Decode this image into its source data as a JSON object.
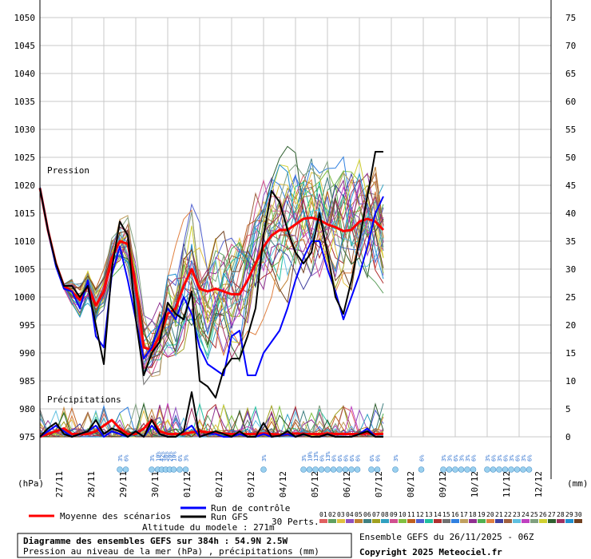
{
  "chart_data": {
    "type": "line",
    "title": "Diagramme des ensembles GEFS sur 384h : 54.9N 2.5W",
    "subtitle": "Pression au niveau de la mer (hPa) , précipitations (mm)",
    "run_info": "Ensemble GEFS du 26/11/2025 - 06Z",
    "copyright": "Copyright 2025 Meteociel.fr",
    "altitude": "Altitude du modele : 271m",
    "left_unit": "(hPa)",
    "right_unit": "(mm)",
    "pressure_label": "Pression",
    "precip_label": "Précipitations",
    "y_left_ticks": [
      "975",
      "980",
      "985",
      "990",
      "995",
      "1000",
      "1005",
      "1010",
      "1015",
      "1020",
      "1025",
      "1030",
      "1035",
      "1040",
      "1045",
      "1050"
    ],
    "y_right_ticks": [
      "0",
      "5",
      "10",
      "15",
      "20",
      "25",
      "30",
      "35",
      "40",
      "45",
      "50",
      "55",
      "60",
      "65",
      "70",
      "75"
    ],
    "ylim": [
      975,
      1050
    ],
    "x_ticks": [
      "27/11",
      "28/11",
      "29/11",
      "30/11",
      "01/12",
      "02/12",
      "03/12",
      "04/12",
      "05/12",
      "06/12",
      "07/12",
      "08/12",
      "09/12",
      "10/12",
      "11/12",
      "12/12"
    ],
    "grid": true,
    "legend": {
      "mean": "Moyenne des scénarios",
      "control": "Run de contrôle",
      "gfs": "Run GFS",
      "perts_label": "30 Perts.",
      "pert_numbers": [
        "01",
        "02",
        "03",
        "04",
        "05",
        "06",
        "07",
        "08",
        "09",
        "10",
        "11",
        "12",
        "13",
        "14",
        "15",
        "16",
        "17",
        "18",
        "19",
        "20",
        "21",
        "22",
        "23",
        "24",
        "25",
        "26",
        "27",
        "28",
        "29",
        "30"
      ],
      "pert_colors": [
        "#e06060",
        "#60a060",
        "#e0c040",
        "#9050c0",
        "#c08030",
        "#408080",
        "#a0a020",
        "#30a0c0",
        "#d05090",
        "#80c040",
        "#c06020",
        "#5060d0",
        "#20c0a0",
        "#b03030",
        "#707070",
        "#3080e0",
        "#c0a060",
        "#903090",
        "#50b050",
        "#e08040",
        "#4040a0",
        "#a06040",
        "#60c0e0",
        "#c040c0",
        "#80a080",
        "#d0d030",
        "#306030",
        "#a03060",
        "#2090d0",
        "#704020"
      ]
    },
    "snow_markers": [
      {
        "x": 10.0,
        "label": "3%"
      },
      {
        "x": 10.75,
        "label": "6%"
      },
      {
        "x": 14.0,
        "label": "3%"
      },
      {
        "x": 14.75,
        "label": "10%"
      },
      {
        "x": 15.25,
        "label": "42%"
      },
      {
        "x": 15.75,
        "label": "38%"
      },
      {
        "x": 16.25,
        "label": "20%"
      },
      {
        "x": 16.75,
        "label": "10%"
      },
      {
        "x": 17.5,
        "label": "6%"
      },
      {
        "x": 18.25,
        "label": "3%"
      },
      {
        "x": 28.0,
        "label": "3%"
      },
      {
        "x": 33.0,
        "label": "3%"
      },
      {
        "x": 33.75,
        "label": "10%"
      },
      {
        "x": 34.5,
        "label": "13%"
      },
      {
        "x": 35.25,
        "label": "6%"
      },
      {
        "x": 36.0,
        "label": "13%"
      },
      {
        "x": 36.75,
        "label": "6%"
      },
      {
        "x": 37.5,
        "label": "6%"
      },
      {
        "x": 38.25,
        "label": "6%"
      },
      {
        "x": 39.0,
        "label": "6%"
      },
      {
        "x": 39.75,
        "label": "6%"
      },
      {
        "x": 41.5,
        "label": "6%"
      },
      {
        "x": 42.25,
        "label": "6%"
      },
      {
        "x": 44.5,
        "label": "3%"
      },
      {
        "x": 47.75,
        "label": "6%"
      },
      {
        "x": 50.5,
        "label": "3%"
      },
      {
        "x": 51.25,
        "label": "3%"
      },
      {
        "x": 52.0,
        "label": "6%"
      },
      {
        "x": 52.75,
        "label": "3%"
      },
      {
        "x": 53.5,
        "label": "3%"
      },
      {
        "x": 54.25,
        "label": "6%"
      },
      {
        "x": 56.0,
        "label": "3%"
      },
      {
        "x": 56.75,
        "label": "6%"
      },
      {
        "x": 57.5,
        "label": "3%"
      },
      {
        "x": 58.25,
        "label": "6%"
      },
      {
        "x": 59.0,
        "label": "3%"
      },
      {
        "x": 59.75,
        "label": "6%"
      },
      {
        "x": 60.5,
        "label": "3%"
      },
      {
        "x": 61.25,
        "label": "6%"
      }
    ],
    "series": [
      {
        "name": "Moyenne des scénarios",
        "kind": "pressure",
        "color": "#ff0000",
        "values": [
          1019.5,
          1012,
          1006,
          1002,
          1001,
          999.5,
          1002,
          998.5,
          1001,
          1007,
          1010,
          1009.5,
          1002,
          991,
          990.5,
          993,
          997,
          998,
          1002,
          1005,
          1001.5,
          1001,
          1001.5,
          1001,
          1000.5,
          1000.5,
          1003,
          1006,
          1009,
          1011,
          1012,
          1012,
          1013,
          1014,
          1014.2,
          1013.8,
          1013,
          1012.5,
          1011.8,
          1012,
          1013.5,
          1014,
          1013.5,
          1012
        ]
      },
      {
        "name": "Run de contrôle",
        "kind": "pressure",
        "color": "#0000ff",
        "values": [
          1019.5,
          1012,
          1005.5,
          1001.5,
          1001,
          998,
          1003,
          993,
          991,
          1004,
          1009,
          1003,
          996,
          989,
          991,
          995,
          998,
          996,
          1000,
          997,
          991,
          988,
          987,
          986,
          993,
          994,
          986,
          986,
          990,
          992,
          994,
          998,
          1003,
          1007,
          1010,
          1010,
          1005,
          1001,
          996,
          1000,
          1004,
          1009,
          1015,
          1018
        ]
      },
      {
        "name": "Run GFS",
        "kind": "pressure",
        "color": "#000000",
        "values": [
          1019.5,
          1012,
          1006,
          1002,
          1002,
          1000,
          1002,
          995,
          988,
          1005,
          1013.5,
          1011,
          996,
          986,
          990,
          992,
          999,
          997,
          996,
          1001,
          985,
          984,
          982,
          987,
          989,
          989,
          993,
          998,
          1011,
          1019,
          1017,
          1012,
          1008,
          1006,
          1008,
          1015,
          1008,
          1000,
          997,
          1003,
          1010,
          1018,
          1026,
          1026
        ]
      },
      {
        "name": "Moyenne des scénarios (précipitations)",
        "kind": "precip",
        "color": "#ff0000",
        "values": [
          0,
          0.5,
          1,
          1.5,
          0.5,
          0.5,
          0.5,
          1,
          2,
          3,
          1.5,
          0.5,
          0.5,
          1.5,
          3,
          1,
          0.5,
          0.5,
          0.5,
          0.8,
          1,
          0.8,
          0.8,
          0.6,
          0.5,
          0.5,
          0.5,
          0.5,
          0.6,
          0.5,
          0.4,
          0.5,
          0.6,
          0.5,
          0.5,
          0.5,
          0.6,
          0.5,
          0.5,
          0.5,
          0.5,
          0.6,
          0.5,
          0.5
        ]
      },
      {
        "name": "Run de contrôle (précipitations)",
        "kind": "precip",
        "color": "#0000ff",
        "values": [
          0,
          1,
          2,
          1,
          0,
          0.5,
          1,
          2,
          0,
          1,
          0.5,
          0,
          1,
          0,
          2,
          0.5,
          0,
          0,
          1,
          2,
          0,
          0.5,
          0.5,
          0,
          0,
          0.5,
          0,
          0,
          0.5,
          0,
          0.2,
          0.5,
          0,
          0.5,
          0,
          0,
          0.5,
          0,
          0,
          0,
          0.5,
          1.5,
          0,
          0
        ]
      },
      {
        "name": "Run GFS (précipitations)",
        "kind": "precip",
        "color": "#000000",
        "values": [
          0,
          1.5,
          2.5,
          0.5,
          0,
          0.5,
          1,
          3,
          0.5,
          1.5,
          1,
          0,
          1,
          0,
          3,
          0.5,
          0,
          0,
          1,
          8,
          0,
          0.5,
          1,
          0.5,
          0,
          1,
          0,
          0,
          2.5,
          0,
          0.2,
          1,
          0,
          0.5,
          0,
          0,
          0.5,
          0,
          0,
          0,
          0.5,
          1,
          0,
          0
        ]
      }
    ]
  }
}
